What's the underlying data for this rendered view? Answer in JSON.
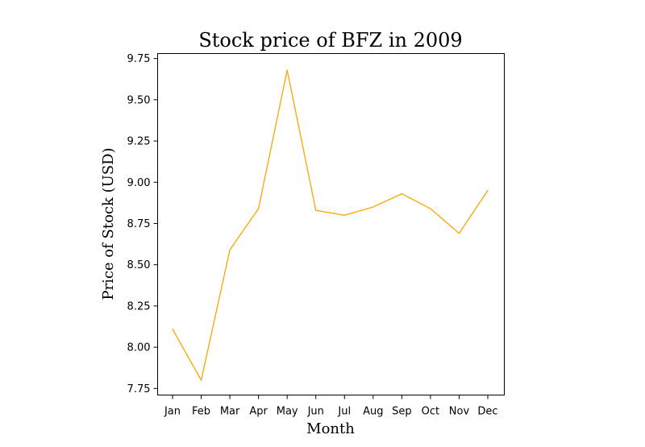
{
  "chart_data": {
    "type": "line",
    "title": "Stock price of BFZ in 2009",
    "xlabel": "Month",
    "ylabel": "Price of Stock (USD)",
    "categories": [
      "Jan",
      "Feb",
      "Mar",
      "Apr",
      "May",
      "Jun",
      "Jul",
      "Aug",
      "Sep",
      "Oct",
      "Nov",
      "Dec"
    ],
    "series": [
      {
        "values": [
          8.11,
          7.8,
          8.59,
          8.84,
          9.68,
          8.83,
          8.8,
          8.85,
          8.93,
          8.84,
          8.69,
          8.95
        ],
        "color": "#ffa500"
      }
    ],
    "yticks": [
      "7.75",
      "8.00",
      "8.25",
      "8.50",
      "8.75",
      "9.00",
      "9.25",
      "9.50",
      "9.75"
    ],
    "ylim": [
      7.71,
      9.78
    ],
    "grid": false,
    "legend": "none"
  }
}
